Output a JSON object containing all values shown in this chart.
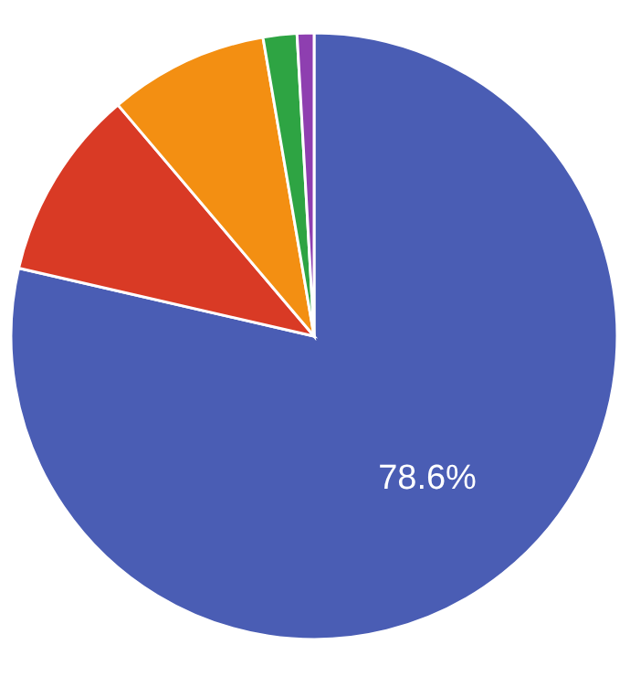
{
  "chart_data": {
    "type": "pie",
    "categories": [
      null,
      null,
      null,
      null,
      null
    ],
    "values": [
      78.6,
      10.2,
      8.5,
      1.8,
      0.9
    ],
    "colors": [
      "#4a5db4",
      "#d93a25",
      "#f38f12",
      "#2ea443",
      "#8e3fb0"
    ],
    "value_labels": [
      "78.6%",
      null,
      null,
      null,
      null
    ]
  }
}
